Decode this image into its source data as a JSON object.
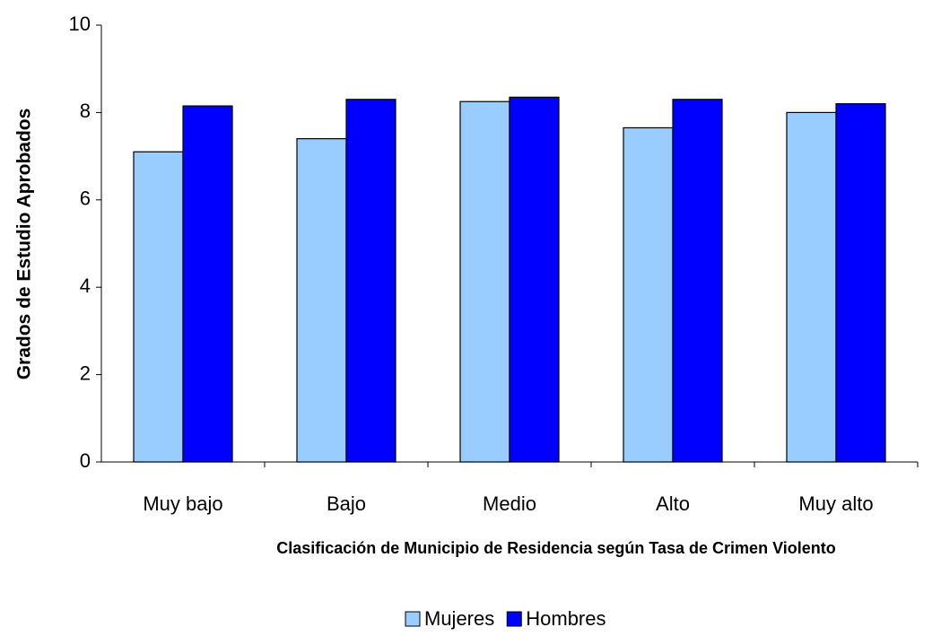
{
  "chart_data": {
    "type": "bar",
    "x_label": "Clasificación de Municipio de Residencia según Tasa de Crimen Violento",
    "y_label": "Grados de Estudio Aprobados",
    "categories": [
      "Muy bajo",
      "Bajo",
      "Medio",
      "Alto",
      "Muy alto"
    ],
    "series": [
      {
        "name": "Mujeres",
        "color": "#99ccff",
        "values": [
          7.1,
          7.4,
          8.25,
          7.65,
          8.0
        ]
      },
      {
        "name": "Hombres",
        "color": "#0000ff",
        "values": [
          8.15,
          8.3,
          8.35,
          8.3,
          8.2
        ]
      }
    ],
    "ylim": [
      0,
      10
    ],
    "yticks": [
      0,
      2,
      4,
      6,
      8,
      10
    ],
    "legend": "bottom"
  }
}
